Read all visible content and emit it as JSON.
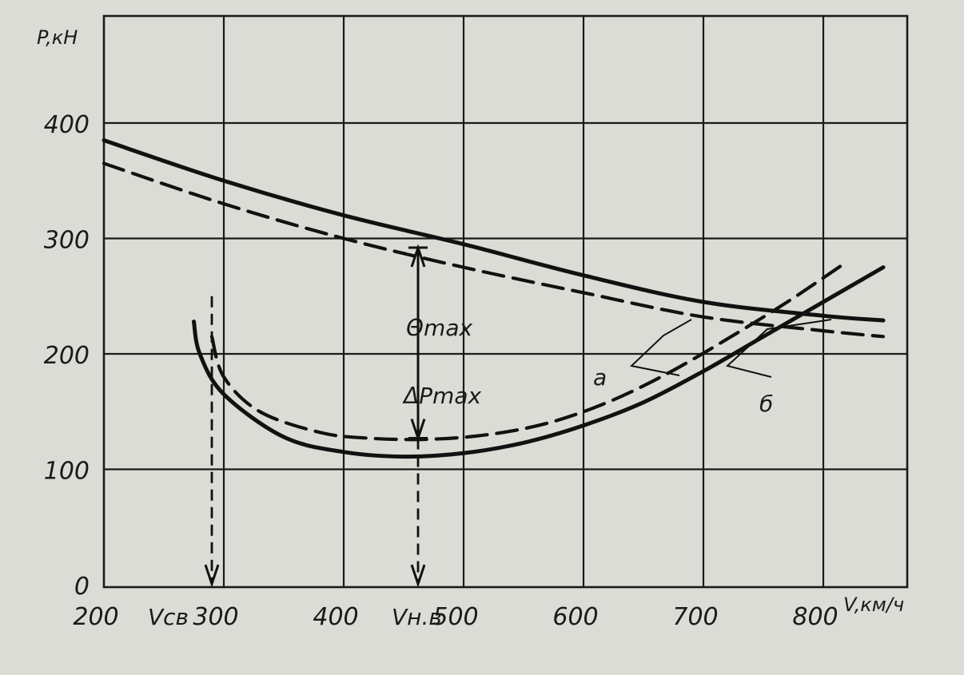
{
  "chart_data": {
    "type": "line",
    "title": "",
    "xlabel": "V,км/ч",
    "ylabel": "P,кН",
    "xlim": [
      200,
      900
    ],
    "ylim": [
      0,
      500
    ],
    "grid": true,
    "x_ticks": [
      "200",
      "300",
      "400",
      "500",
      "600",
      "700",
      "800"
    ],
    "y_ticks": [
      "0",
      "100",
      "200",
      "300",
      "400"
    ],
    "series": [
      {
        "name": "",
        "style": "solid",
        "role": "available thrust (a)",
        "x": [
          200,
          300,
          400,
          500,
          600,
          700,
          800,
          850
        ],
        "y": [
          385,
          350,
          320,
          295,
          268,
          245,
          233,
          229
        ]
      },
      {
        "name": "",
        "style": "dashed",
        "role": "available thrust (б)",
        "x": [
          200,
          300,
          400,
          500,
          600,
          700,
          800,
          850
        ],
        "y": [
          365,
          330,
          300,
          275,
          253,
          232,
          220,
          215
        ]
      },
      {
        "name": "",
        "style": "solid",
        "role": "required thrust (a)",
        "x": [
          275,
          280,
          300,
          350,
          400,
          450,
          500,
          550,
          600,
          650,
          700,
          750,
          800,
          850
        ],
        "y": [
          228,
          200,
          165,
          128,
          115,
          111,
          114,
          123,
          138,
          158,
          185,
          215,
          245,
          275
        ]
      },
      {
        "name": "",
        "style": "dashed",
        "role": "required thrust (б)",
        "x": [
          290,
          300,
          330,
          380,
          420,
          470,
          520,
          570,
          620,
          670,
          720,
          770,
          820
        ],
        "y": [
          215,
          180,
          150,
          132,
          127,
          126,
          130,
          140,
          158,
          183,
          213,
          245,
          280
        ]
      }
    ],
    "annotations": {
      "theta_max": "Θmax",
      "delta_p_max": "ΔPmax",
      "curve_a": "а",
      "curve_b": "б",
      "v_sv": "Vсв",
      "v_nv": "Vн.в"
    },
    "markers": {
      "v_sv_x": 290,
      "v_nv_x": 462,
      "dp_top_y": 292,
      "dp_bottom_y": 127
    }
  }
}
